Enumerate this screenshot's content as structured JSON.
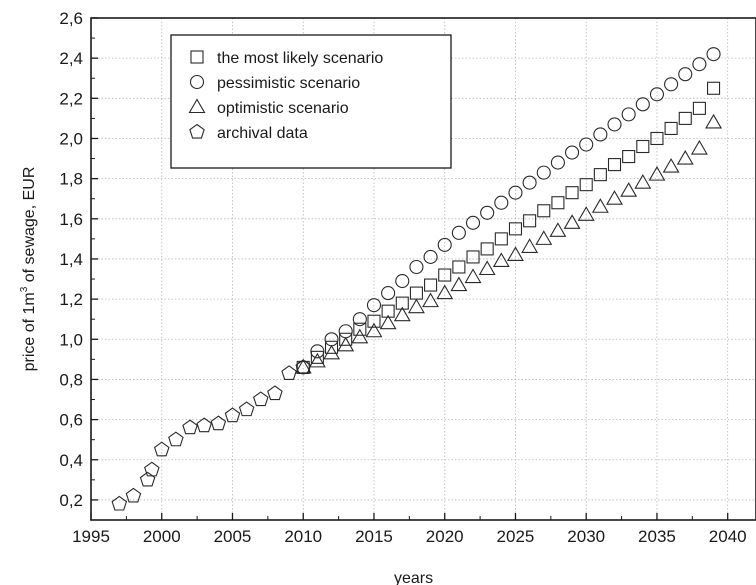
{
  "chart_data": {
    "type": "scatter",
    "xlabel": "years",
    "ylabel_prefix": "price of 1m",
    "ylabel_sup": "3",
    "ylabel_suffix": " of sewage, EUR",
    "xlim": [
      1995,
      2042
    ],
    "ylim": [
      0.1,
      2.6
    ],
    "xticks": [
      1995,
      2000,
      2005,
      2010,
      2015,
      2020,
      2025,
      2030,
      2035,
      2040
    ],
    "yticks": [
      0.2,
      0.4,
      0.6,
      0.8,
      1.0,
      1.2,
      1.4,
      1.6,
      1.8,
      2.0,
      2.2,
      2.4,
      2.6
    ],
    "xtick_labels": [
      "1995",
      "2000",
      "2005",
      "2010",
      "2015",
      "2020",
      "2025",
      "2030",
      "2035",
      "2040"
    ],
    "ytick_labels": [
      "0,2",
      "0,4",
      "0,6",
      "0,8",
      "1,0",
      "1,2",
      "1,4",
      "1,6",
      "1,8",
      "2,0",
      "2,2",
      "2,4",
      "2,6"
    ],
    "grid": true,
    "legend_position": "top-left",
    "series": [
      {
        "name": "the most likely scenario",
        "marker": "square",
        "x": [
          2010,
          2011,
          2012,
          2013,
          2014,
          2015,
          2016,
          2017,
          2018,
          2019,
          2020,
          2021,
          2022,
          2023,
          2024,
          2025,
          2026,
          2027,
          2028,
          2029,
          2030,
          2031,
          2032,
          2033,
          2034,
          2035,
          2036,
          2037,
          2038,
          2039
        ],
        "y": [
          0.86,
          0.91,
          0.96,
          1.0,
          1.05,
          1.09,
          1.14,
          1.18,
          1.23,
          1.27,
          1.32,
          1.36,
          1.41,
          1.45,
          1.5,
          1.55,
          1.59,
          1.64,
          1.68,
          1.73,
          1.77,
          1.82,
          1.87,
          1.91,
          1.96,
          2.0,
          2.05,
          2.1,
          2.15,
          2.25
        ]
      },
      {
        "name": "pessimistic scenario",
        "marker": "circle",
        "x": [
          2010,
          2011,
          2012,
          2013,
          2014,
          2015,
          2016,
          2017,
          2018,
          2019,
          2020,
          2021,
          2022,
          2023,
          2024,
          2025,
          2026,
          2027,
          2028,
          2029,
          2030,
          2031,
          2032,
          2033,
          2034,
          2035,
          2036,
          2037,
          2038,
          2039
        ],
        "y": [
          0.86,
          0.94,
          1.0,
          1.04,
          1.1,
          1.17,
          1.23,
          1.29,
          1.36,
          1.41,
          1.47,
          1.53,
          1.58,
          1.63,
          1.68,
          1.73,
          1.78,
          1.83,
          1.88,
          1.93,
          1.97,
          2.02,
          2.07,
          2.12,
          2.17,
          2.22,
          2.27,
          2.32,
          2.37,
          2.42
        ]
      },
      {
        "name": "optimistic scenario",
        "marker": "triangle",
        "x": [
          2010,
          2011,
          2012,
          2013,
          2014,
          2015,
          2016,
          2017,
          2018,
          2019,
          2020,
          2021,
          2022,
          2023,
          2024,
          2025,
          2026,
          2027,
          2028,
          2029,
          2030,
          2031,
          2032,
          2033,
          2034,
          2035,
          2036,
          2037,
          2038,
          2039
        ],
        "y": [
          0.86,
          0.89,
          0.93,
          0.97,
          1.01,
          1.04,
          1.08,
          1.12,
          1.16,
          1.19,
          1.23,
          1.27,
          1.31,
          1.35,
          1.39,
          1.42,
          1.46,
          1.5,
          1.54,
          1.58,
          1.62,
          1.66,
          1.7,
          1.74,
          1.78,
          1.82,
          1.86,
          1.9,
          1.95,
          2.08
        ]
      },
      {
        "name": "archival data",
        "marker": "pentagon",
        "x": [
          1997,
          1998,
          1999,
          1999.3,
          2000,
          2001,
          2002,
          2003,
          2004,
          2005,
          2006,
          2007,
          2008,
          2009,
          2010
        ],
        "y": [
          0.18,
          0.22,
          0.3,
          0.35,
          0.45,
          0.5,
          0.56,
          0.57,
          0.58,
          0.62,
          0.65,
          0.7,
          0.73,
          0.83,
          0.86
        ]
      }
    ]
  }
}
